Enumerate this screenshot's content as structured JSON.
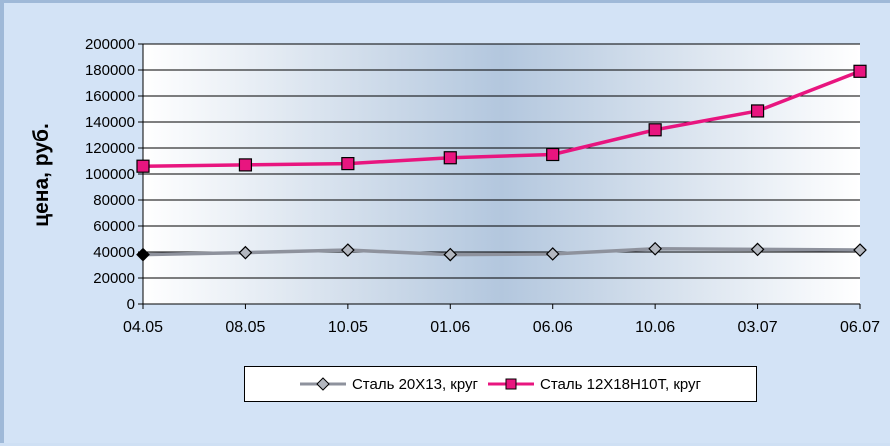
{
  "chart_data": {
    "type": "line",
    "title": "",
    "xlabel": "",
    "ylabel": "цена, руб.",
    "categories": [
      "04.05",
      "08.05",
      "10.05",
      "01.06",
      "06.06",
      "10.06",
      "03.07",
      "06.07"
    ],
    "ylim": [
      0,
      200000
    ],
    "yticks": [
      "0",
      "20000",
      "40000",
      "60000",
      "80000",
      "100000",
      "120000",
      "140000",
      "160000",
      "180000",
      "200000"
    ],
    "grid": true,
    "legend_position": "bottom",
    "series": [
      {
        "name": "Сталь 20Х13, круг",
        "values": [
          38000,
          39500,
          41500,
          38000,
          38500,
          42500,
          42000,
          41500
        ],
        "color": "#8e929d",
        "marker": "diamond",
        "marker_fill": "#b3b7bf"
      },
      {
        "name": "Сталь 12Х18Н10Т, круг",
        "values": [
          106000,
          107000,
          108000,
          112500,
          115000,
          134000,
          148500,
          179000
        ],
        "color": "#e8157f",
        "marker": "square",
        "marker_fill": "#e8157f"
      }
    ]
  }
}
